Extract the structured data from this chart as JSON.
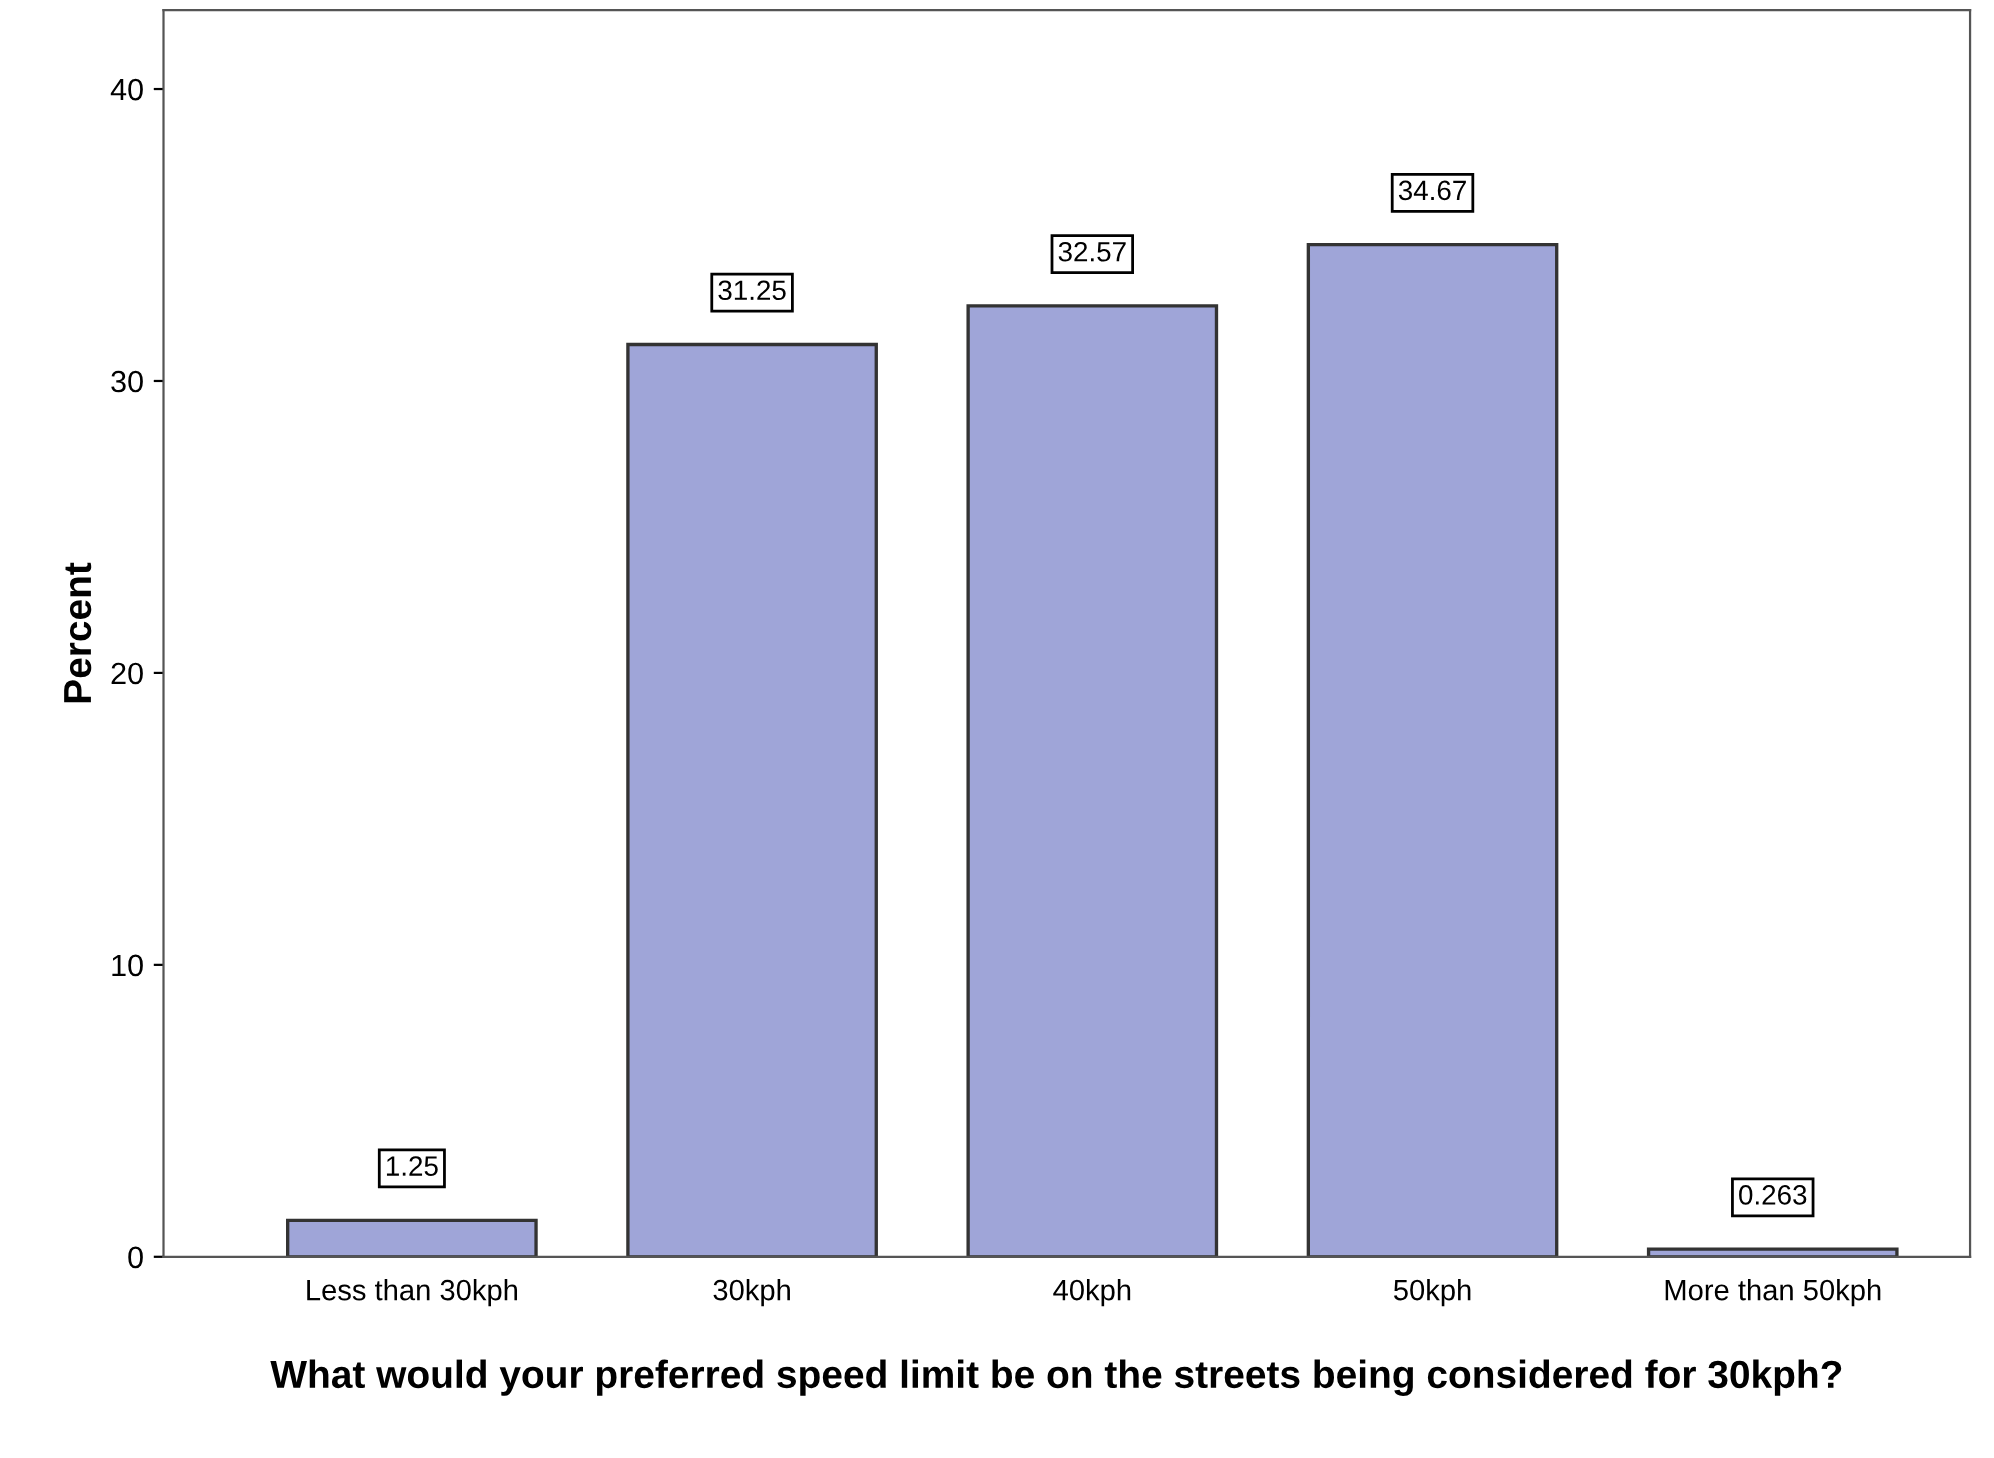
{
  "chart_data": {
    "type": "bar",
    "xlabel": "What would your preferred speed limit be on the streets being considered for 30kph?",
    "ylabel": "Percent",
    "categories": [
      "Less than 30kph",
      "30kph",
      "40kph",
      "50kph",
      "More than 50kph"
    ],
    "values": [
      1.25,
      31.25,
      32.57,
      34.67,
      0.263
    ],
    "value_labels": [
      "1.25",
      "31.25",
      "32.57",
      "34.67",
      "0.263"
    ],
    "color": "#9fa5d8",
    "ylim": [
      0,
      42.7
    ],
    "yticks": [
      0,
      10,
      20,
      30,
      40
    ],
    "grid": false
  }
}
